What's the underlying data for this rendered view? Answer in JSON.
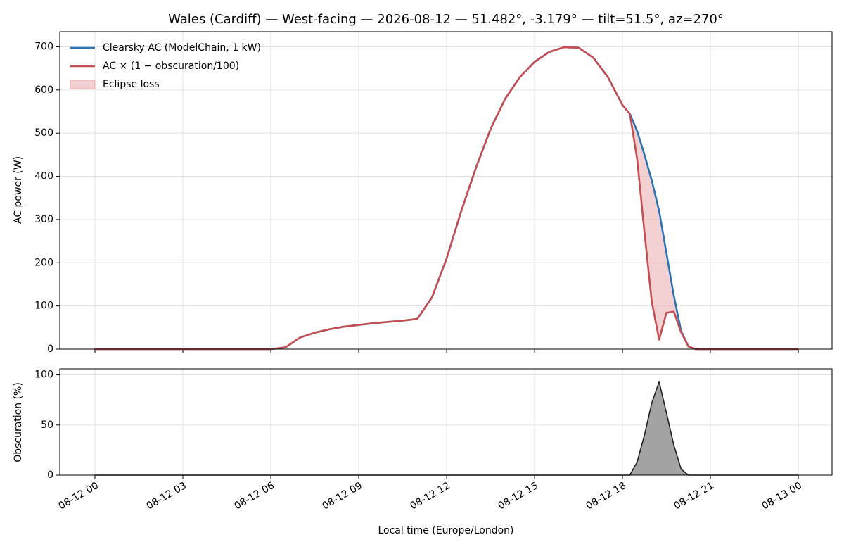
{
  "chart_data": [
    {
      "type": "line",
      "title": "Wales (Cardiff) — West-facing — 2026-08-12 — 51.482°, -3.179° — tilt=51.5°, az=270°",
      "y_label": "AC power (W)",
      "x": [
        0,
        0.5,
        1,
        1.5,
        2,
        2.5,
        3,
        3.5,
        4,
        4.5,
        5,
        5.5,
        6,
        6.5,
        7,
        7.5,
        8,
        8.5,
        9,
        9.5,
        10,
        10.5,
        11,
        11.5,
        12,
        12.5,
        13,
        13.5,
        14,
        14.5,
        15,
        15.5,
        16,
        16.5,
        17,
        17.5,
        18,
        18.25,
        18.5,
        18.75,
        19,
        19.25,
        19.5,
        19.75,
        20,
        20.25,
        20.5,
        21,
        21.5,
        22,
        22.5,
        23,
        23.5,
        24
      ],
      "series": [
        {
          "name": "Clearsky AC (ModelChain, 1 kW)",
          "color": "#2a74b4",
          "values": [
            0,
            0,
            0,
            0,
            0,
            0,
            0,
            0,
            0,
            0,
            0,
            0,
            0,
            4,
            27,
            38,
            46,
            52,
            56,
            60,
            63,
            66,
            70,
            120,
            210,
            320,
            420,
            510,
            580,
            630,
            665,
            688,
            699,
            698,
            675,
            630,
            565,
            545,
            505,
            450,
            390,
            320,
            222,
            124,
            42,
            6,
            0,
            0,
            0,
            0,
            0,
            0,
            0,
            0
          ]
        },
        {
          "name": "AC × (1 − obscuration/100)",
          "color": "#c44e52",
          "values": [
            0,
            0,
            0,
            0,
            0,
            0,
            0,
            0,
            0,
            0,
            0,
            0,
            0,
            4,
            27,
            38,
            46,
            52,
            56,
            60,
            63,
            66,
            70,
            120,
            210,
            320,
            420,
            510,
            580,
            630,
            665,
            688,
            699,
            698,
            675,
            630,
            565,
            545,
            440,
            270,
            109,
            22,
            84,
            87,
            39,
            6,
            0,
            0,
            0,
            0,
            0,
            0,
            0,
            0
          ]
        }
      ],
      "fill": {
        "name": "Eclipse loss",
        "color": "#e9a9ab"
      },
      "ylim": [
        0,
        735
      ],
      "yticks": [
        0,
        100,
        200,
        300,
        400,
        500,
        600,
        700
      ],
      "grid": true,
      "legend": "upper left"
    },
    {
      "type": "area",
      "y_label": "Obscuration (%)",
      "x_label": "Local time (Europe/London)",
      "x": [
        0,
        18,
        18.25,
        18.5,
        18.75,
        19,
        19.25,
        19.5,
        19.75,
        20,
        20.25,
        20.5,
        24
      ],
      "series": [
        {
          "name": "Obscuration",
          "color": "#222222",
          "fill": "#a3a3a3",
          "values": [
            0,
            0,
            0,
            13,
            40,
            72,
            93,
            62,
            30,
            6,
            0,
            0,
            0
          ]
        }
      ],
      "xlim": [
        -1.2,
        25.15
      ],
      "xticks": [
        {
          "value": 0,
          "label": "08-12 00"
        },
        {
          "value": 3,
          "label": "08-12 03"
        },
        {
          "value": 6,
          "label": "08-12 06"
        },
        {
          "value": 9,
          "label": "08-12 09"
        },
        {
          "value": 12,
          "label": "08-12 12"
        },
        {
          "value": 15,
          "label": "08-12 15"
        },
        {
          "value": 18,
          "label": "08-12 18"
        },
        {
          "value": 21,
          "label": "08-12 21"
        },
        {
          "value": 24,
          "label": "08-13 00"
        }
      ],
      "ylim": [
        0,
        106
      ],
      "yticks": [
        0,
        50,
        100
      ],
      "grid": true
    }
  ]
}
